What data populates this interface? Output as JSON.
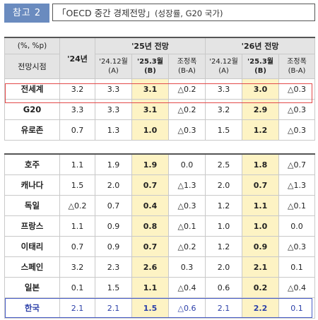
{
  "header": {
    "tag": "참고 2",
    "title_main": "「OECD 중간 경제전망」",
    "title_sub": "(성장률, G20 국가)"
  },
  "table": {
    "unit_label": "(%, %p)",
    "row_header_label": "전망시점",
    "col_24": "'24년",
    "group_25": "'25년 전망",
    "group_26": "'26년 전망",
    "sub_headers": [
      {
        "top": "'24.12월",
        "bottom": "(A)"
      },
      {
        "top": "'25.3월",
        "bottom": "(B)"
      },
      {
        "top": "조정폭",
        "bottom": "(B-A)"
      },
      {
        "top": "'24.12월",
        "bottom": "(A)"
      },
      {
        "top": "'25.3월",
        "bottom": "(B)"
      },
      {
        "top": "조정폭",
        "bottom": "(B-A)"
      }
    ],
    "rows_top": [
      {
        "name": "전세계",
        "v24": "3.2",
        "a25": "3.3",
        "b25": "3.1",
        "d25": "△0.2",
        "a26": "3.3",
        "b26": "3.0",
        "d26": "△0.3"
      },
      {
        "name": "G20",
        "v24": "3.3",
        "a25": "3.3",
        "b25": "3.1",
        "d25": "△0.2",
        "a26": "3.2",
        "b26": "2.9",
        "d26": "△0.3"
      },
      {
        "name": "유로존",
        "v24": "0.7",
        "a25": "1.3",
        "b25": "1.0",
        "d25": "△0.3",
        "a26": "1.5",
        "b26": "1.2",
        "d26": "△0.3"
      }
    ],
    "rows_bottom": [
      {
        "name": "호주",
        "v24": "1.1",
        "a25": "1.9",
        "b25": "1.9",
        "d25": "0.0",
        "a26": "2.5",
        "b26": "1.8",
        "d26": "△0.7"
      },
      {
        "name": "캐나다",
        "v24": "1.5",
        "a25": "2.0",
        "b25": "0.7",
        "d25": "△1.3",
        "a26": "2.0",
        "b26": "0.7",
        "d26": "△1.3"
      },
      {
        "name": "독일",
        "v24": "△0.2",
        "a25": "0.7",
        "b25": "0.4",
        "d25": "△0.3",
        "a26": "1.2",
        "b26": "1.1",
        "d26": "△0.1"
      },
      {
        "name": "프랑스",
        "v24": "1.1",
        "a25": "0.9",
        "b25": "0.8",
        "d25": "△0.1",
        "a26": "1.0",
        "b26": "1.0",
        "d26": "0.0"
      },
      {
        "name": "이태리",
        "v24": "0.7",
        "a25": "0.9",
        "b25": "0.7",
        "d25": "△0.2",
        "a26": "1.2",
        "b26": "0.9",
        "d26": "△0.3"
      },
      {
        "name": "스페인",
        "v24": "3.2",
        "a25": "2.3",
        "b25": "2.6",
        "d25": "0.3",
        "a26": "2.0",
        "b26": "2.1",
        "d26": "0.1"
      },
      {
        "name": "일본",
        "v24": "0.1",
        "a25": "1.5",
        "b25": "1.1",
        "d25": "△0.4",
        "a26": "0.6",
        "b26": "0.2",
        "d26": "△0.4"
      },
      {
        "name": "한국",
        "v24": "2.1",
        "a25": "2.1",
        "b25": "1.5",
        "d25": "△0.6",
        "a26": "2.1",
        "b26": "2.2",
        "d26": "0.1"
      }
    ]
  },
  "colors": {
    "tag_bg": "#6a8bbf",
    "highlight_col": "#fdf3c4",
    "world_box": "#e34a4a",
    "korea_box": "#4a5fc8"
  }
}
